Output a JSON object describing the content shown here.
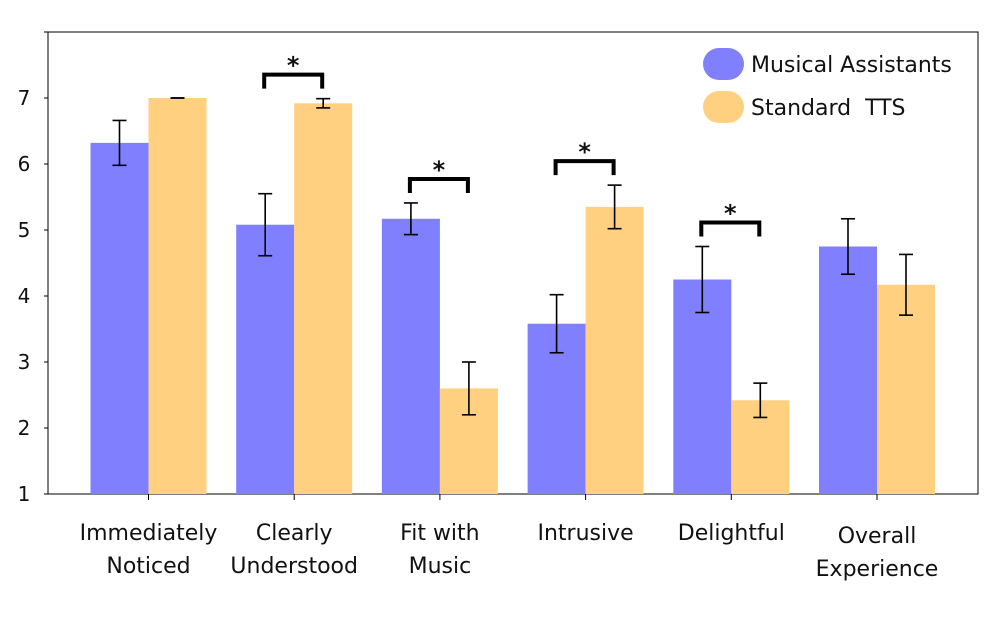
{
  "chart_data": {
    "type": "bar",
    "categories": [
      [
        "Immediately",
        "Noticed"
      ],
      [
        "Clearly",
        "Understood"
      ],
      [
        "Fit with",
        "Music"
      ],
      [
        "Intrusive"
      ],
      [
        "Delightful"
      ],
      [
        "Overall",
        "Experience"
      ]
    ],
    "series": [
      {
        "name": "Musical Assistants",
        "color": "#8080ff",
        "values": [
          6.32,
          5.08,
          5.17,
          3.58,
          4.25,
          4.75
        ],
        "error": [
          0.34,
          0.47,
          0.24,
          0.44,
          0.5,
          0.42
        ]
      },
      {
        "name": "Standard  TTS",
        "color": "#ffd080",
        "values": [
          7.0,
          6.92,
          2.6,
          5.35,
          2.42,
          4.17
        ],
        "error": [
          0.0,
          0.07,
          0.4,
          0.33,
          0.26,
          0.46
        ]
      }
    ],
    "ylim": [
      1,
      8.0
    ],
    "yticks": [
      1,
      2,
      3,
      4,
      5,
      6,
      7
    ],
    "significance": [
      {
        "category_index": 1,
        "label": "*"
      },
      {
        "category_index": 2,
        "label": "*"
      },
      {
        "category_index": 3,
        "label": "*"
      },
      {
        "category_index": 4,
        "label": "*"
      }
    ],
    "legend_position": "top-right",
    "grid": false
  }
}
